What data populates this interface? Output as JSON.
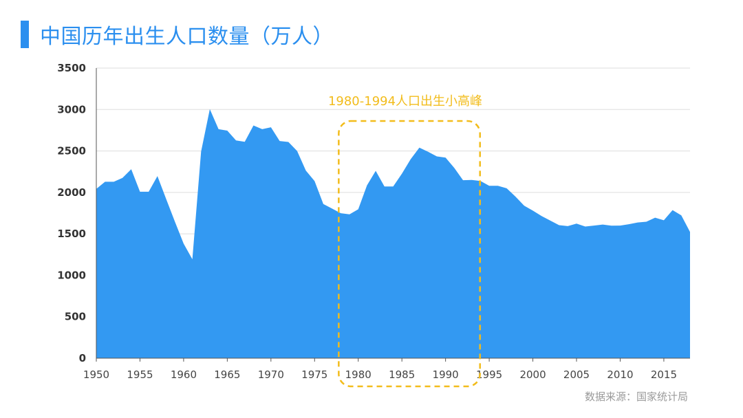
{
  "title": "中国历年出生人口数量（万人）",
  "source": "数据来源：国家统计局",
  "colors": {
    "accent": "#2b8fef",
    "area": "#3399f2",
    "highlight": "#f2bc1b"
  },
  "chart_data": {
    "type": "area",
    "title": "中国历年出生人口数量（万人）",
    "x": [
      1950,
      1951,
      1952,
      1953,
      1954,
      1955,
      1956,
      1957,
      1958,
      1959,
      1960,
      1961,
      1962,
      1963,
      1964,
      1965,
      1966,
      1967,
      1968,
      1969,
      1970,
      1971,
      1972,
      1973,
      1974,
      1975,
      1976,
      1977,
      1978,
      1979,
      1980,
      1981,
      1982,
      1983,
      1984,
      1985,
      1986,
      1987,
      1988,
      1989,
      1990,
      1991,
      1992,
      1993,
      1994,
      1995,
      1996,
      1997,
      1998,
      1999,
      2000,
      2001,
      2002,
      2003,
      2004,
      2005,
      2006,
      2007,
      2008,
      2009,
      2010,
      2011,
      2012,
      2013,
      2014,
      2015,
      2016,
      2017,
      2018
    ],
    "values": [
      2042,
      2128,
      2128,
      2175,
      2280,
      2008,
      2008,
      2197,
      1920,
      1647,
      1382,
      1193,
      2492,
      3004,
      2763,
      2745,
      2627,
      2610,
      2807,
      2763,
      2786,
      2620,
      2608,
      2500,
      2263,
      2137,
      1860,
      1805,
      1749,
      1735,
      1797,
      2085,
      2260,
      2071,
      2071,
      2226,
      2400,
      2540,
      2490,
      2434,
      2420,
      2295,
      2147,
      2150,
      2138,
      2080,
      2080,
      2050,
      1950,
      1840,
      1780,
      1715,
      1660,
      1605,
      1593,
      1624,
      1588,
      1600,
      1612,
      1599,
      1600,
      1616,
      1637,
      1646,
      1695,
      1664,
      1786,
      1723,
      1523
    ],
    "xticks": [
      "1950",
      "1955",
      "1960",
      "1965",
      "1970",
      "1975",
      "1980",
      "1985",
      "1990",
      "1995",
      "2000",
      "2005",
      "2010",
      "2015"
    ],
    "yticks": [
      "0",
      "500",
      "1000",
      "1500",
      "2000",
      "2500",
      "3000",
      "3500"
    ],
    "xlim": [
      1950,
      2018
    ],
    "ylim": [
      0,
      3500
    ],
    "grid": true,
    "annotation": {
      "text": "1980-1994人口出生小高峰",
      "x_start": 1978,
      "x_end": 1993
    }
  }
}
